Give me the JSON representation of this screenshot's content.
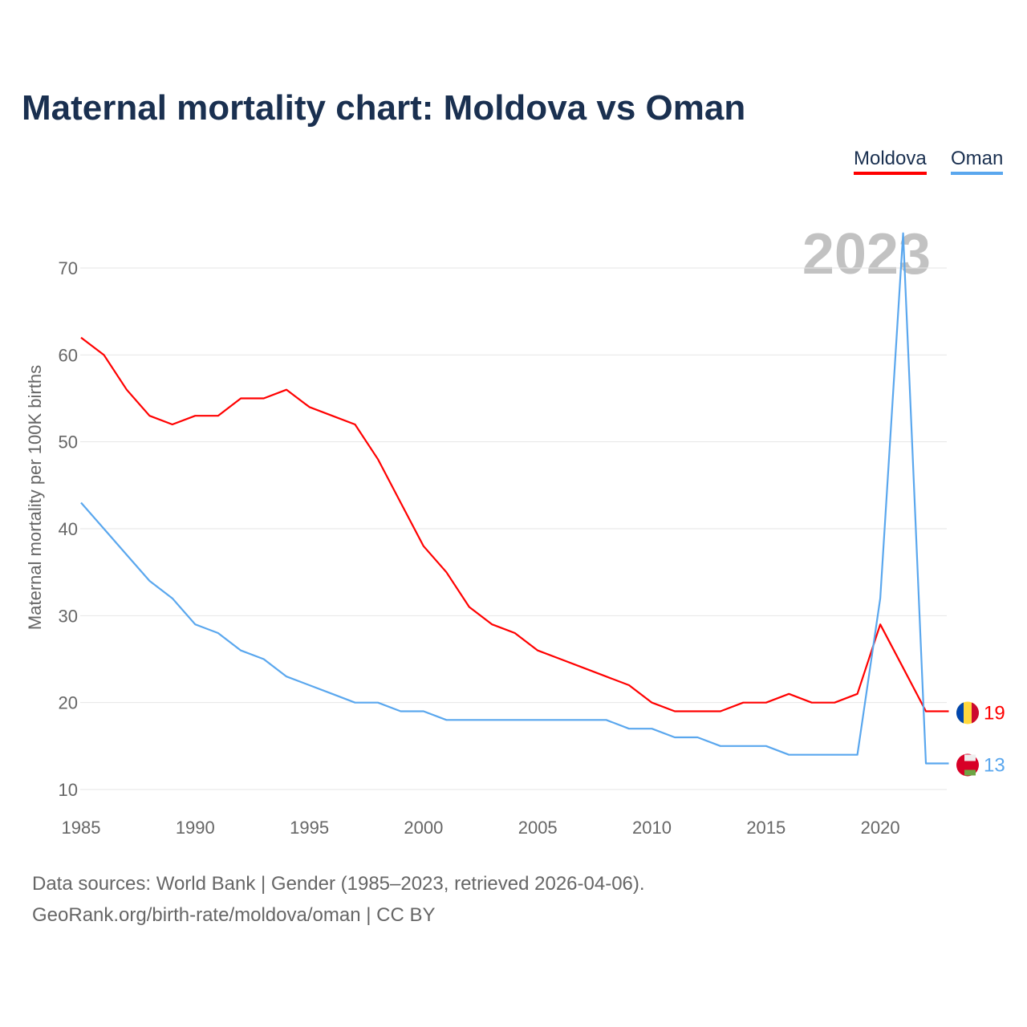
{
  "chart_data": {
    "type": "line",
    "title": "Maternal mortality chart: Moldova vs Oman",
    "ylabel": "Maternal mortality per 100K births",
    "xlabel": "",
    "year_watermark": "2023",
    "x": [
      1985,
      1986,
      1987,
      1988,
      1989,
      1990,
      1991,
      1992,
      1993,
      1994,
      1995,
      1996,
      1997,
      1998,
      1999,
      2000,
      2001,
      2002,
      2003,
      2004,
      2005,
      2006,
      2007,
      2008,
      2009,
      2010,
      2011,
      2012,
      2013,
      2014,
      2015,
      2016,
      2017,
      2018,
      2019,
      2020,
      2021,
      2022,
      2023
    ],
    "xlim": [
      1985,
      2023
    ],
    "ylim": [
      8,
      74
    ],
    "xticks": [
      "1985",
      "1990",
      "1995",
      "2000",
      "2005",
      "2010",
      "2015",
      "2020"
    ],
    "yticks": [
      "10",
      "20",
      "30",
      "40",
      "50",
      "60",
      "70"
    ],
    "grid": true,
    "legend_position": "top-right",
    "series": [
      {
        "name": "Moldova",
        "color": "#ff0000",
        "end_label": "19",
        "values": [
          62,
          60,
          56,
          53,
          52,
          53,
          53,
          55,
          55,
          56,
          54,
          53,
          52,
          48,
          43,
          38,
          35,
          31,
          29,
          28,
          26,
          25,
          24,
          23,
          22,
          20,
          19,
          19,
          19,
          20,
          20,
          21,
          20,
          20,
          21,
          29,
          24,
          19,
          19
        ]
      },
      {
        "name": "Oman",
        "color": "#5aa7ee",
        "end_label": "13",
        "values": [
          43,
          40,
          37,
          34,
          32,
          29,
          28,
          26,
          25,
          23,
          22,
          21,
          20,
          20,
          19,
          19,
          18,
          18,
          18,
          18,
          18,
          18,
          18,
          18,
          17,
          17,
          16,
          16,
          15,
          15,
          15,
          14,
          14,
          14,
          14,
          32,
          74,
          13,
          13
        ]
      }
    ]
  },
  "footer": {
    "line1": "Data sources: World Bank | Gender (1985–2023, retrieved 2026-04-06).",
    "line2": "GeoRank.org/birth-rate/moldova/oman | CC BY"
  }
}
